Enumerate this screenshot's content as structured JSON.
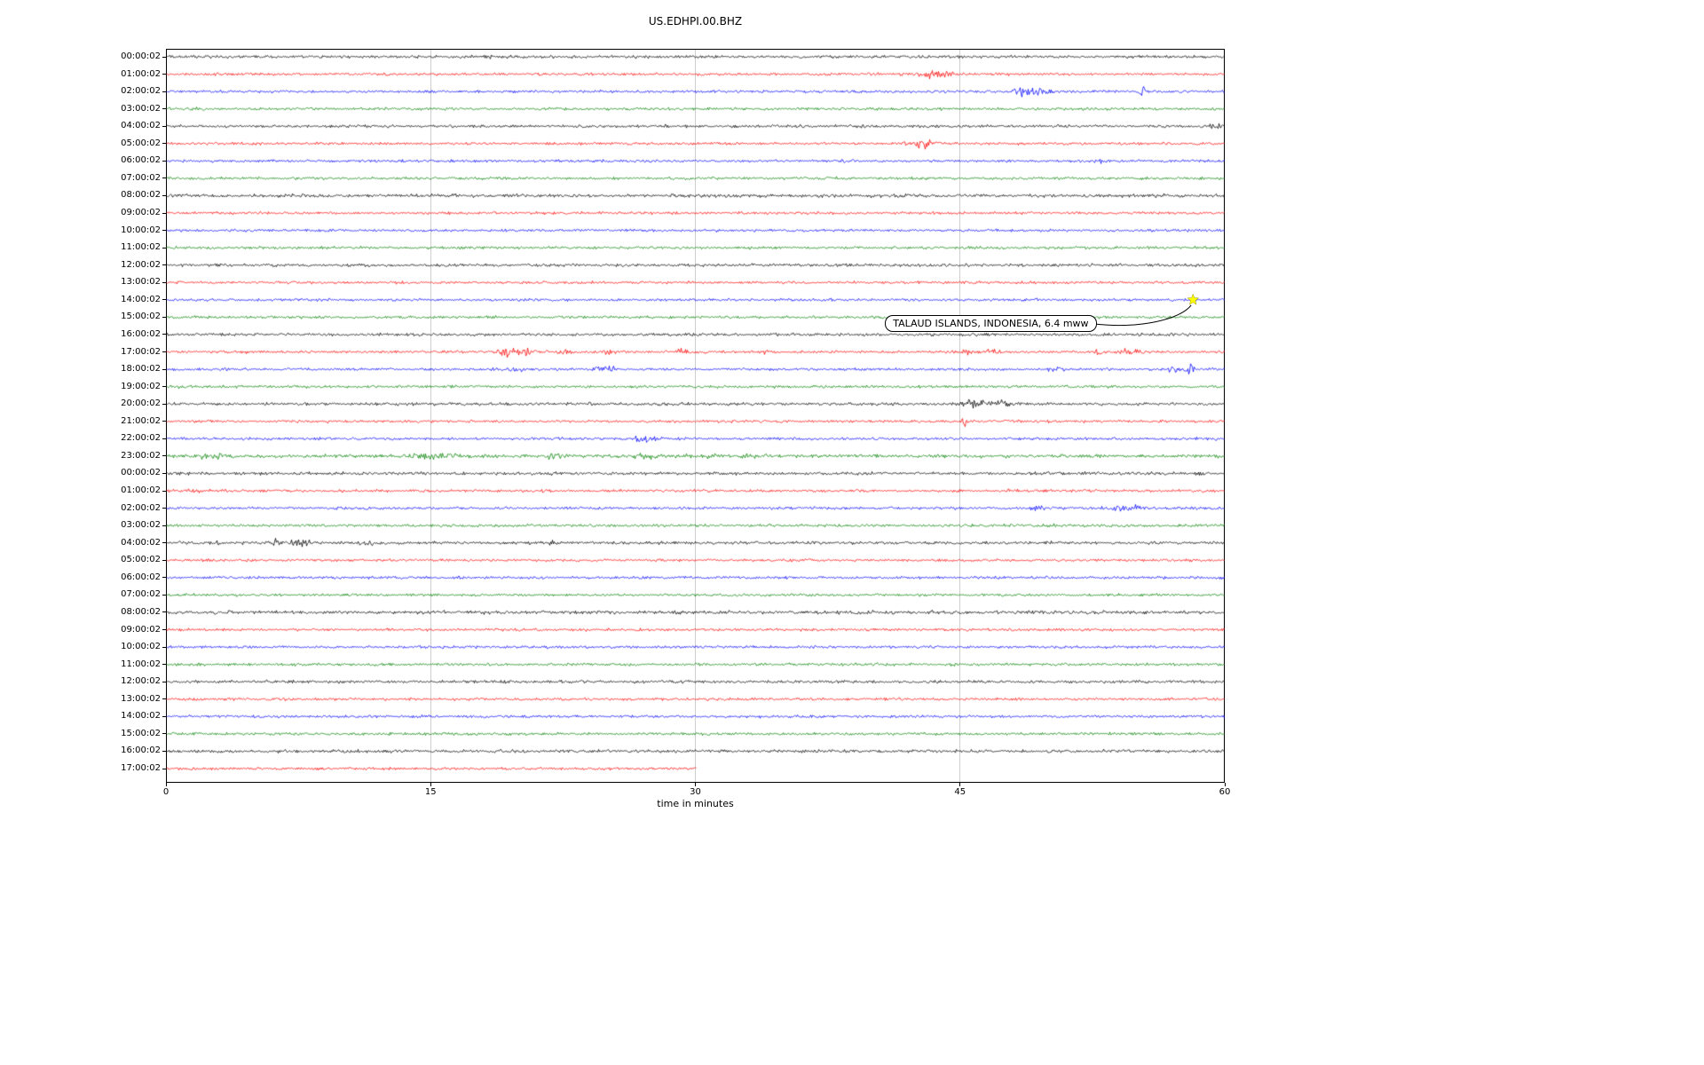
{
  "chart_data": {
    "type": "line",
    "subtype": "seismogram-dayplot",
    "title": "US.EDHPI.00.BHZ",
    "xlabel": "time in minutes",
    "xlim": [
      0,
      60
    ],
    "x_ticks": [
      0,
      15,
      30,
      45,
      60
    ],
    "grid": true,
    "trace_colors": [
      "#000000",
      "#ff0000",
      "#0000ff",
      "#008000"
    ],
    "annotation": {
      "text": "TALAUD ISLANDS, INDONESIA, 6.4 mww",
      "row_index": 14,
      "minute": 58.2,
      "star_color": "#ffff00"
    },
    "rows": [
      {
        "label": "00:00:02",
        "base": 1.1,
        "events": [
          [
            18.3,
            2.5,
            0.25
          ],
          [
            40,
            1.5,
            0.3
          ]
        ]
      },
      {
        "label": "01:00:02",
        "events": [
          [
            43,
            5,
            0.7
          ],
          [
            44.3,
            4,
            0.5
          ]
        ]
      },
      {
        "label": "02:00:02",
        "events": [
          [
            48.3,
            4,
            0.5
          ],
          [
            49,
            5,
            0.7
          ],
          [
            49.8,
            3,
            0.4
          ],
          [
            55.3,
            5,
            0.25
          ]
        ]
      },
      {
        "label": "03:00:02",
        "events": [
          [
            1.5,
            1.2,
            1
          ]
        ]
      },
      {
        "label": "04:00:02",
        "base": 1.05,
        "events": [
          [
            59.4,
            2.5,
            0.3
          ]
        ]
      },
      {
        "label": "05:00:02",
        "events": [
          [
            42.5,
            2,
            1
          ],
          [
            43.2,
            8,
            0.5
          ]
        ]
      },
      {
        "label": "06:00:02",
        "events": [
          [
            38.6,
            1.5,
            0.4
          ],
          [
            52.9,
            1.2,
            0.4
          ]
        ]
      },
      {
        "label": "07:00:02",
        "events": []
      },
      {
        "label": "08:00:02",
        "base": 1.25,
        "events": []
      },
      {
        "label": "09:00:02",
        "events": []
      },
      {
        "label": "10:00:02",
        "events": []
      },
      {
        "label": "11:00:02",
        "events": []
      },
      {
        "label": "12:00:02",
        "base": 1.1,
        "events": []
      },
      {
        "label": "13:00:02",
        "events": []
      },
      {
        "label": "14:00:02",
        "events": []
      },
      {
        "label": "15:00:02",
        "events": []
      },
      {
        "label": "16:00:02",
        "base": 1.1,
        "events": []
      },
      {
        "label": "17:00:02",
        "events": [
          [
            19.2,
            6,
            0.5
          ],
          [
            20.3,
            4,
            0.8
          ],
          [
            22.5,
            3,
            0.5
          ],
          [
            25,
            2.5,
            0.4
          ],
          [
            29.2,
            4,
            0.3
          ],
          [
            34,
            2.5,
            0.3
          ],
          [
            45.5,
            3,
            0.6
          ],
          [
            46.8,
            3,
            0.4
          ],
          [
            52.8,
            9,
            0.15
          ],
          [
            54.5,
            3,
            0.8
          ]
        ]
      },
      {
        "label": "18:00:02",
        "events": [
          [
            19.9,
            3,
            0.4
          ],
          [
            24.6,
            4,
            0.5
          ],
          [
            25.4,
            3,
            0.4
          ],
          [
            50.6,
            2.5,
            0.5
          ],
          [
            57,
            3,
            0.7
          ],
          [
            58,
            7,
            0.25
          ]
        ]
      },
      {
        "label": "19:00:02",
        "events": [
          [
            1,
            1.5,
            0.5
          ]
        ]
      },
      {
        "label": "20:00:02",
        "base": 1.1,
        "events": [
          [
            45.2,
            3,
            0.5
          ],
          [
            46.3,
            5,
            0.9
          ],
          [
            47.4,
            3,
            0.4
          ]
        ]
      },
      {
        "label": "21:00:02",
        "events": [
          [
            45.2,
            11,
            0.15
          ]
        ]
      },
      {
        "label": "22:00:02",
        "events": [
          [
            27,
            4,
            0.5
          ],
          [
            27.8,
            4,
            0.4
          ]
        ]
      },
      {
        "label": "23:00:02",
        "base": 1.3,
        "events": [
          [
            2.2,
            4,
            0.5
          ],
          [
            3,
            3,
            0.4
          ],
          [
            14.5,
            5,
            0.6
          ],
          [
            15.5,
            4,
            0.5
          ],
          [
            16.2,
            3,
            0.4
          ],
          [
            22,
            3,
            0.5
          ],
          [
            27,
            3,
            0.6
          ],
          [
            31,
            3,
            0.5
          ],
          [
            33,
            2.5,
            0.5
          ]
        ]
      },
      {
        "label": "00:00:02",
        "base": 1.15,
        "events": []
      },
      {
        "label": "01:00:02",
        "events": [
          [
            2,
            1.5,
            1
          ],
          [
            48,
            1.2,
            0.5
          ]
        ]
      },
      {
        "label": "02:00:02",
        "events": [
          [
            49.4,
            2.5,
            0.5
          ],
          [
            54.1,
            3.5,
            0.7
          ],
          [
            55,
            2.5,
            0.4
          ]
        ]
      },
      {
        "label": "03:00:02",
        "events": [
          [
            50,
            1.5,
            0.5
          ],
          [
            54,
            1.5,
            0.5
          ]
        ]
      },
      {
        "label": "04:00:02",
        "base": 1.1,
        "events": [
          [
            2.6,
            2,
            0.4
          ],
          [
            6.1,
            4,
            0.5
          ],
          [
            6.9,
            4,
            0.5
          ],
          [
            7.7,
            3.5,
            0.45
          ],
          [
            11.3,
            3,
            0.4
          ],
          [
            21.9,
            2,
            0.35
          ]
        ]
      },
      {
        "label": "05:00:02",
        "events": []
      },
      {
        "label": "06:00:02",
        "events": []
      },
      {
        "label": "07:00:02",
        "events": []
      },
      {
        "label": "08:00:02",
        "base": 1.3,
        "events": []
      },
      {
        "label": "09:00:02",
        "events": []
      },
      {
        "label": "10:00:02",
        "events": []
      },
      {
        "label": "11:00:02",
        "events": []
      },
      {
        "label": "12:00:02",
        "base": 1.1,
        "events": []
      },
      {
        "label": "13:00:02",
        "events": []
      },
      {
        "label": "14:00:02",
        "events": []
      },
      {
        "label": "15:00:02",
        "events": []
      },
      {
        "label": "16:00:02",
        "base": 1.15,
        "events": []
      },
      {
        "label": "17:00:02",
        "end": 30,
        "events": []
      }
    ]
  }
}
